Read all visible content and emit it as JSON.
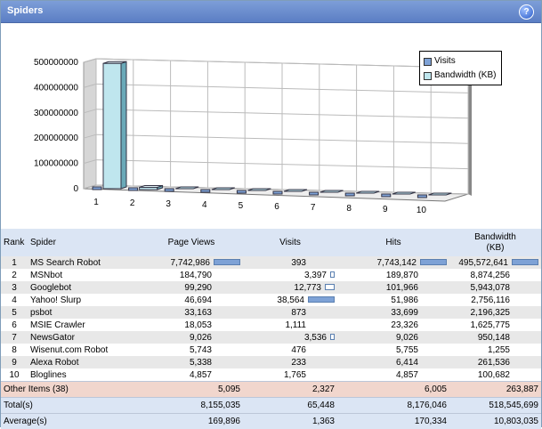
{
  "window": {
    "title": "Spiders",
    "help_icon": "help-icon",
    "help_label": "?"
  },
  "colors": {
    "visits": "#7ea2d6",
    "bandwidth": "#bfe6ee",
    "title_bar": "#6a8fd0"
  },
  "chart_data": {
    "type": "bar",
    "categories": [
      "1",
      "2",
      "3",
      "4",
      "5",
      "6",
      "7",
      "8",
      "9",
      "10"
    ],
    "series": [
      {
        "name": "Visits",
        "values": [
          393,
          3397,
          12773,
          38564,
          873,
          1111,
          3536,
          476,
          233,
          1765
        ]
      },
      {
        "name": "Bandwidth (KB)",
        "values": [
          495572641,
          8874256,
          5943078,
          2756116,
          2196325,
          1625775,
          950148,
          1255,
          261536,
          100682
        ]
      }
    ],
    "yticks": [
      "0",
      "100000000",
      "200000000",
      "300000000",
      "400000000",
      "500000000"
    ],
    "ylim": [
      0,
      500000000
    ],
    "legend": "top-right",
    "grid": true
  },
  "table": {
    "headers": {
      "rank": "Rank",
      "spider": "Spider",
      "page_views": "Page Views",
      "visits": "Visits",
      "hits": "Hits",
      "bandwidth": "Bandwidth\n(KB)"
    },
    "rows": [
      {
        "rank": "1",
        "spider": "MS Search Robot",
        "page_views": "7,742,986",
        "visits": "393",
        "hits": "7,743,142",
        "bandwidth": "495,572,641"
      },
      {
        "rank": "2",
        "spider": "MSNbot",
        "page_views": "184,790",
        "visits": "3,397",
        "hits": "189,870",
        "bandwidth": "8,874,256"
      },
      {
        "rank": "3",
        "spider": "Googlebot",
        "page_views": "99,290",
        "visits": "12,773",
        "hits": "101,966",
        "bandwidth": "5,943,078"
      },
      {
        "rank": "4",
        "spider": "Yahoo! Slurp",
        "page_views": "46,694",
        "visits": "38,564",
        "hits": "51,986",
        "bandwidth": "2,756,116"
      },
      {
        "rank": "5",
        "spider": "psbot",
        "page_views": "33,163",
        "visits": "873",
        "hits": "33,699",
        "bandwidth": "2,196,325"
      },
      {
        "rank": "6",
        "spider": "MSIE Crawler",
        "page_views": "18,053",
        "visits": "1,111",
        "hits": "23,326",
        "bandwidth": "1,625,775"
      },
      {
        "rank": "7",
        "spider": "NewsGator",
        "page_views": "9,026",
        "visits": "3,536",
        "hits": "9,026",
        "bandwidth": "950,148"
      },
      {
        "rank": "8",
        "spider": "Wisenut.com Robot",
        "page_views": "5,743",
        "visits": "476",
        "hits": "5,755",
        "bandwidth": "1,255"
      },
      {
        "rank": "9",
        "spider": "Alexa Robot",
        "page_views": "5,338",
        "visits": "233",
        "hits": "6,414",
        "bandwidth": "261,536"
      },
      {
        "rank": "10",
        "spider": "Bloglines",
        "page_views": "4,857",
        "visits": "1,765",
        "hits": "4,857",
        "bandwidth": "100,682"
      }
    ],
    "bars": {
      "page_views": [
        1.0,
        0,
        0,
        0,
        0,
        0,
        0,
        0,
        0,
        0
      ],
      "visits": [
        0,
        0.09,
        0.33,
        1.0,
        0,
        0,
        0.09,
        0,
        0,
        0
      ],
      "visits_style": [
        "",
        "white",
        "white",
        "blue",
        "",
        "",
        "white",
        "",
        "",
        ""
      ],
      "hits": [
        1.0,
        0,
        0,
        0,
        0,
        0,
        0,
        0,
        0,
        0
      ],
      "bandwidth": [
        1.0,
        0,
        0,
        0,
        0,
        0,
        0,
        0,
        0,
        0
      ]
    },
    "other": {
      "label": "Other Items (38)",
      "page_views": "5,095",
      "visits": "2,327",
      "hits": "6,005",
      "bandwidth": "263,887"
    },
    "total": {
      "label": "Total(s)",
      "page_views": "8,155,035",
      "visits": "65,448",
      "hits": "8,176,046",
      "bandwidth": "518,545,699"
    },
    "average": {
      "label": "Average(s)",
      "page_views": "169,896",
      "visits": "1,363",
      "hits": "170,334",
      "bandwidth": "10,803,035"
    }
  }
}
